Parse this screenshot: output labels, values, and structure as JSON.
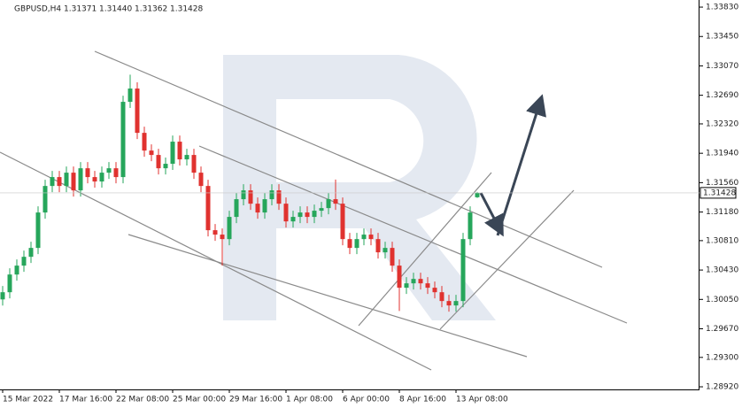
{
  "chart_data": {
    "type": "candlestick",
    "symbol": "GBPUSD,H4",
    "quote": [
      "1.31371",
      "1.31440",
      "1.31362",
      "1.31428"
    ],
    "categories": [
      "15 Mar 2022",
      null,
      null,
      null,
      null,
      null,
      null,
      null,
      "17 Mar 16:00",
      null,
      null,
      null,
      null,
      null,
      null,
      null,
      "22 Mar 08:00",
      null,
      null,
      null,
      null,
      null,
      null,
      null,
      "25 Mar 00:00",
      null,
      null,
      null,
      null,
      null,
      null,
      null,
      "29 Mar 16:00",
      null,
      null,
      null,
      null,
      null,
      null,
      null,
      "1 Apr 08:00",
      null,
      null,
      null,
      null,
      null,
      null,
      null,
      "6 Apr 00:00",
      null,
      null,
      null,
      null,
      null,
      null,
      null,
      "8 Apr 16:00",
      null,
      null,
      null,
      null,
      null,
      null,
      null,
      "13 Apr 08:00",
      null,
      null,
      null
    ],
    "open": [
      1.3005,
      1.30143,
      1.30372,
      1.30487,
      1.30601,
      1.30716,
      1.31174,
      1.31517,
      1.31632,
      1.31517,
      1.31689,
      1.3146,
      1.31746,
      1.31632,
      1.31575,
      1.31689,
      1.31746,
      1.31632,
      1.32605,
      1.32777,
      1.32204,
      1.31975,
      1.31918,
      1.31746,
      1.31804,
      1.3209,
      1.31861,
      1.31918,
      1.31689,
      1.31517,
      1.30945,
      1.30888,
      1.3083,
      1.31117,
      1.31346,
      1.3146,
      1.31288,
      1.31174,
      1.31346,
      1.3146,
      1.31288,
      1.31059,
      1.31117,
      1.31174,
      1.31117,
      1.31197,
      1.31231,
      1.31346,
      1.31288,
      1.3083,
      1.30716,
      1.3083,
      1.30888,
      1.3083,
      1.30659,
      1.30716,
      1.30487,
      1.30201,
      1.30258,
      1.30315,
      1.30258,
      1.30201,
      1.30143,
      1.30029,
      1.29972,
      1.30029,
      1.3083,
      1.31371
    ],
    "high": [
      1.30223,
      1.30452,
      1.30567,
      1.30681,
      1.30796,
      1.31254,
      1.31597,
      1.31712,
      1.31712,
      1.31769,
      1.31769,
      1.31826,
      1.31826,
      1.31712,
      1.31769,
      1.31826,
      1.31826,
      1.32685,
      1.32957,
      1.32857,
      1.32284,
      1.32055,
      1.31998,
      1.31884,
      1.3217,
      1.3217,
      1.31998,
      1.31998,
      1.31769,
      1.31597,
      1.31025,
      1.30968,
      1.31197,
      1.31426,
      1.3154,
      1.3154,
      1.31368,
      1.31426,
      1.3154,
      1.3154,
      1.31368,
      1.31197,
      1.31254,
      1.31254,
      1.31277,
      1.31311,
      1.31426,
      1.316,
      1.31368,
      1.3091,
      1.3091,
      1.30968,
      1.30968,
      1.3091,
      1.30796,
      1.30796,
      1.30567,
      1.30338,
      1.30395,
      1.30395,
      1.30338,
      1.30281,
      1.30223,
      1.30109,
      1.30109,
      1.3091,
      1.31254,
      1.3144
    ],
    "low": [
      1.2997,
      1.30063,
      1.30292,
      1.30407,
      1.30521,
      1.30636,
      1.31094,
      1.31437,
      1.31437,
      1.31437,
      1.3138,
      1.3138,
      1.31552,
      1.31495,
      1.31495,
      1.31609,
      1.31552,
      1.31552,
      1.32525,
      1.32124,
      1.31895,
      1.31838,
      1.31666,
      1.31666,
      1.31724,
      1.31781,
      1.31781,
      1.31609,
      1.31437,
      1.30865,
      1.30808,
      1.30487,
      1.3075,
      1.31037,
      1.31266,
      1.31208,
      1.31094,
      1.31094,
      1.31266,
      1.31208,
      1.30979,
      1.30979,
      1.31037,
      1.31037,
      1.31037,
      1.31117,
      1.31151,
      1.31208,
      1.3075,
      1.30636,
      1.30636,
      1.3075,
      1.3075,
      1.30579,
      1.30579,
      1.30407,
      1.299,
      1.30121,
      1.30178,
      1.30178,
      1.30121,
      1.30063,
      1.29949,
      1.29892,
      1.29892,
      1.29949,
      1.3075,
      1.31362
    ],
    "close": [
      1.30143,
      1.30372,
      1.30487,
      1.30601,
      1.30716,
      1.31174,
      1.31517,
      1.31632,
      1.31517,
      1.31689,
      1.3146,
      1.31746,
      1.31632,
      1.31575,
      1.31689,
      1.31746,
      1.31632,
      1.32605,
      1.32777,
      1.32204,
      1.31975,
      1.31918,
      1.31746,
      1.31804,
      1.3209,
      1.31861,
      1.31918,
      1.31689,
      1.31517,
      1.30945,
      1.30888,
      1.3083,
      1.31117,
      1.31346,
      1.3146,
      1.31288,
      1.31174,
      1.31346,
      1.3146,
      1.31288,
      1.31059,
      1.31117,
      1.31174,
      1.31117,
      1.31197,
      1.31231,
      1.31346,
      1.31288,
      1.3083,
      1.30716,
      1.3083,
      1.30888,
      1.3083,
      1.30659,
      1.30716,
      1.30487,
      1.30201,
      1.30258,
      1.30315,
      1.30258,
      1.30201,
      1.30143,
      1.30029,
      1.29972,
      1.30029,
      1.3083,
      1.31174,
      1.31428
    ],
    "up_color": "#26a65b",
    "down_color": "#e0322f",
    "ylim": [
      1.28886,
      1.33922
    ],
    "yticks": [
      {
        "value": 1.3383,
        "label": "1.33830"
      },
      {
        "value": 1.3345,
        "label": "1.33450"
      },
      {
        "value": 1.3307,
        "label": "1.33070"
      },
      {
        "value": 1.3269,
        "label": "1.32690"
      },
      {
        "value": 1.3232,
        "label": "1.32320"
      },
      {
        "value": 1.3194,
        "label": "1.31940"
      },
      {
        "value": 1.3156,
        "label": "1.31560"
      },
      {
        "value": 1.3118,
        "label": "1.31180"
      },
      {
        "value": 1.3081,
        "label": "1.30810"
      },
      {
        "value": 1.3043,
        "label": "1.30430"
      },
      {
        "value": 1.3005,
        "label": "1.30050"
      },
      {
        "value": 1.2967,
        "label": "1.29670"
      },
      {
        "value": 1.293,
        "label": "1.29300"
      },
      {
        "value": 1.2892,
        "label": "1.28920"
      }
    ],
    "last_price": {
      "value": 1.31428,
      "label": "1.31428"
    }
  }
}
